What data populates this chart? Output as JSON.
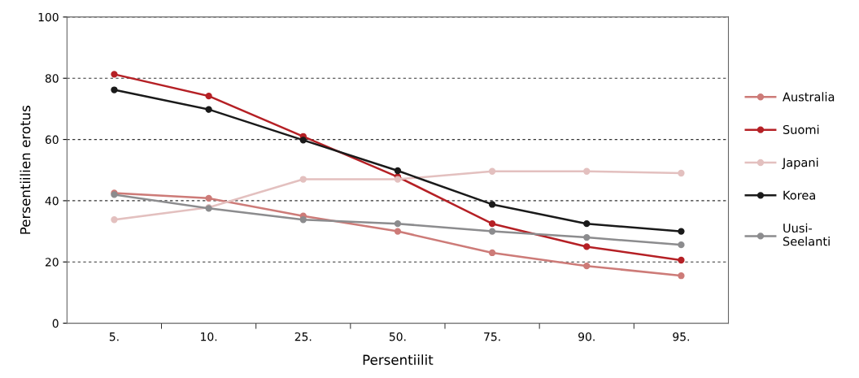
{
  "chart_data": {
    "type": "line",
    "xlabel": "Persentiilit",
    "ylabel": "Persentiilien erotus",
    "categories": [
      "5.",
      "10.",
      "25.",
      "50.",
      "75.",
      "90.",
      "95."
    ],
    "series": [
      {
        "name": "Australia",
        "color": "#cd7b78",
        "values": [
          42.5,
          40.8,
          35,
          30,
          23,
          18.7,
          15.5
        ]
      },
      {
        "name": "Suomi",
        "color": "#b52025",
        "values": [
          81.3,
          74.2,
          61,
          47.8,
          32.5,
          25,
          20.6
        ]
      },
      {
        "name": "Japani",
        "color": "#e3c0bf",
        "values": [
          33.8,
          37.8,
          47,
          47,
          49.6,
          49.6,
          49
        ]
      },
      {
        "name": "Korea",
        "color": "#1a1a1a",
        "values": [
          76.2,
          69.8,
          59.8,
          49.8,
          38.8,
          32.5,
          30
        ]
      },
      {
        "name": "Uusi-\nSeelanti",
        "color": "#8c8c8e",
        "values": [
          42,
          37.5,
          33.8,
          32.5,
          30,
          28,
          25.6
        ]
      }
    ],
    "ylim": [
      0,
      100
    ],
    "yticks": [
      0,
      20,
      40,
      60,
      80,
      100
    ],
    "grid": "y",
    "legend": "right",
    "marker": "circle",
    "line_style": "solid"
  }
}
